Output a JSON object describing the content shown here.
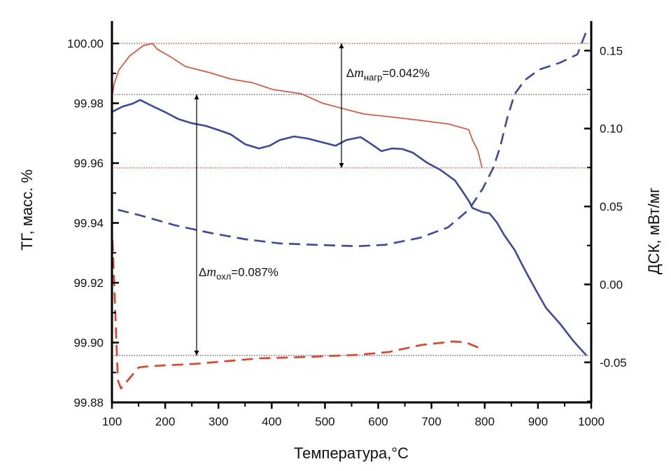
{
  "chart_data": {
    "type": "line",
    "xlabel": "Температура,°C",
    "ylabel_left": "ТГ,  масс. %",
    "ylabel_right": "ДСК,  мВт/мг",
    "xlim": [
      100,
      1000
    ],
    "ylim_left": [
      99.88,
      100.0075
    ],
    "ylim_right": [
      -0.0757,
      0.169
    ],
    "x_ticks": [
      "100",
      "200",
      "300",
      "400",
      "500",
      "600",
      "700",
      "800",
      "900",
      "1000"
    ],
    "y_left_ticks": [
      "99.88",
      "99.90",
      "99.92",
      "99.94",
      "99.96",
      "99.98",
      "100.00"
    ],
    "y_right_ticks": [
      "-0.05",
      "0.00",
      "0.05",
      "0.10",
      "0.15"
    ],
    "grid": false,
    "colors": {
      "heating": "#f03c1e",
      "cooling": "#3a48a8",
      "axis": "#000000"
    },
    "series": [
      {
        "axis": "left",
        "style": "solid",
        "color_key": "heating",
        "x": [
          100,
          104,
          113,
          133,
          159,
          176,
          185,
          212,
          238,
          284,
          323,
          363,
          402,
          455,
          494,
          534,
          573,
          626,
          678,
          731,
          770,
          777,
          787,
          795
        ],
        "y": [
          99.9818,
          99.9864,
          99.9911,
          99.9958,
          99.9993,
          100.0,
          99.9981,
          99.9953,
          99.9923,
          99.9902,
          99.9881,
          99.9869,
          99.9846,
          99.9832,
          99.9801,
          99.9782,
          99.9764,
          99.9754,
          99.9743,
          99.9731,
          99.9712,
          99.9677,
          99.9642,
          99.9584
        ]
      },
      {
        "axis": "left",
        "style": "solid",
        "color_key": "cooling",
        "x": [
          100,
          120,
          139,
          153,
          172,
          199,
          225,
          251,
          277,
          304,
          323,
          350,
          376,
          396,
          415,
          442,
          468,
          494,
          520,
          540,
          567,
          586,
          606,
          626,
          645,
          665,
          691,
          717,
          744,
          757,
          770,
          777,
          796,
          809,
          823,
          836,
          856,
          875,
          895,
          915,
          941,
          967,
          991
        ],
        "y": [
          99.9771,
          99.9789,
          99.9799,
          99.9811,
          99.9794,
          99.9771,
          99.9747,
          99.9733,
          99.9724,
          99.9708,
          99.9696,
          99.9663,
          99.9649,
          99.9658,
          99.9677,
          99.9689,
          99.9682,
          99.967,
          99.9658,
          99.9677,
          99.9687,
          99.9665,
          99.964,
          99.9649,
          99.9647,
          99.9635,
          99.9602,
          99.9577,
          99.9542,
          99.9509,
          99.9474,
          99.945,
          99.9436,
          99.9432,
          99.9401,
          99.9361,
          99.931,
          99.9244,
          99.9179,
          99.9116,
          99.9064,
          99.9004,
          99.8957
        ]
      },
      {
        "axis": "right",
        "style": "dashed",
        "color_key": "heating",
        "x": [
          101,
          111,
          117,
          150,
          171,
          255,
          376,
          468,
          559,
          619,
          680,
          740,
          764,
          798
        ],
        "y": [
          0.0285,
          -0.0614,
          -0.0667,
          -0.0533,
          -0.0524,
          -0.051,
          -0.0474,
          -0.0465,
          -0.0452,
          -0.0434,
          -0.0389,
          -0.0366,
          -0.0371,
          -0.042
        ]
      },
      {
        "axis": "right",
        "style": "dashed",
        "color_key": "cooling",
        "x": [
          111,
          153,
          218,
          284,
          350,
          415,
          481,
          560,
          613,
          678,
          731,
          770,
          796,
          816,
          829,
          842,
          856,
          875,
          902,
          941,
          974,
          991
        ],
        "y": [
          0.0479,
          0.0443,
          0.038,
          0.0331,
          0.029,
          0.0263,
          0.0254,
          0.0245,
          0.0254,
          0.0299,
          0.0366,
          0.0479,
          0.0613,
          0.0748,
          0.0883,
          0.1063,
          0.122,
          0.131,
          0.1378,
          0.1422,
          0.1476,
          0.1625
        ]
      }
    ],
    "reference_lines": [
      {
        "axis": "left",
        "value": 100.0,
        "color_key": "heating",
        "style": "dotted"
      },
      {
        "axis": "left",
        "value": 99.9584,
        "color_key": "heating",
        "style": "dotted"
      },
      {
        "axis": "left",
        "value": 99.9829,
        "color_key": "cooling",
        "style": "dotted"
      },
      {
        "axis": "left",
        "value": 99.8957,
        "color_key": "cooling",
        "style": "dotted"
      }
    ],
    "arrows": [
      {
        "x": 531,
        "from": 100.0,
        "to": 99.9584
      },
      {
        "x": 259,
        "from": 99.9829,
        "to": 99.8957
      }
    ],
    "annotations": [
      {
        "delta": "Δ",
        "m": "m",
        "sub": "нагр",
        "value": "=0.042%",
        "x": 540,
        "y": 99.9888
      },
      {
        "delta": "Δ",
        "m": "m",
        "sub": "охл",
        "value": "=0.087%",
        "x": 263,
        "y": 99.9222
      }
    ]
  }
}
